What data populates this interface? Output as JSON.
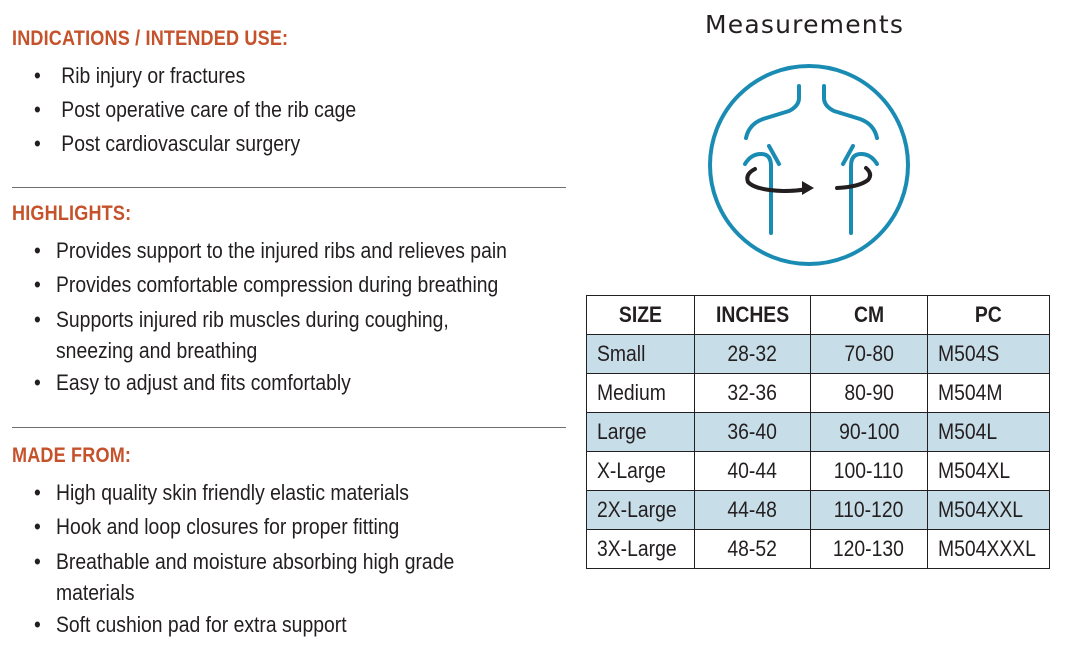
{
  "indications": {
    "title": "INDICATIONS / INTENDED USE:",
    "items": [
      "Rib injury or fractures",
      "Post operative care of the rib cage",
      "Post cardiovascular surgery"
    ]
  },
  "highlights": {
    "title": "HIGHLIGHTS:",
    "items": [
      "Provides support to the injured ribs and relieves pain",
      "Provides comfortable compression during breathing",
      "Supports injured rib muscles during coughing, sneezing and breathing",
      "Easy to adjust and fits comfortably"
    ]
  },
  "made_from": {
    "title": "MADE FROM:",
    "items": [
      "High quality skin friendly elastic materials",
      "Hook and loop closures for proper fitting",
      "Breathable and moisture absorbing high grade materials",
      "Soft cushion pad for extra support"
    ]
  },
  "bullet_char": "•",
  "measurements": {
    "title": "Measurements",
    "icon": "torso-measurement-icon",
    "icon_color": "#1a8cb4"
  },
  "size_table": {
    "headers": [
      "SIZE",
      "INCHES",
      "CM",
      "PC"
    ],
    "rows": [
      {
        "size": "Small",
        "inches": "28-32",
        "cm": "70-80",
        "pc": "M504S"
      },
      {
        "size": "Medium",
        "inches": "32-36",
        "cm": "80-90",
        "pc": "M504M"
      },
      {
        "size": "Large",
        "inches": "36-40",
        "cm": "90-100",
        "pc": "M504L"
      },
      {
        "size": "X-Large",
        "inches": "40-44",
        "cm": "100-110",
        "pc": "M504XL"
      },
      {
        "size": "2X-Large",
        "inches": "44-48",
        "cm": "110-120",
        "pc": "M504XXL"
      },
      {
        "size": "3X-Large",
        "inches": "48-52",
        "cm": "120-130",
        "pc": "M504XXXL"
      }
    ],
    "shaded_color": "#c7dde8"
  },
  "colors": {
    "heading": "#c5522b",
    "text": "#231f20",
    "divider": "#6d6e71",
    "accent": "#1a8cb4"
  }
}
